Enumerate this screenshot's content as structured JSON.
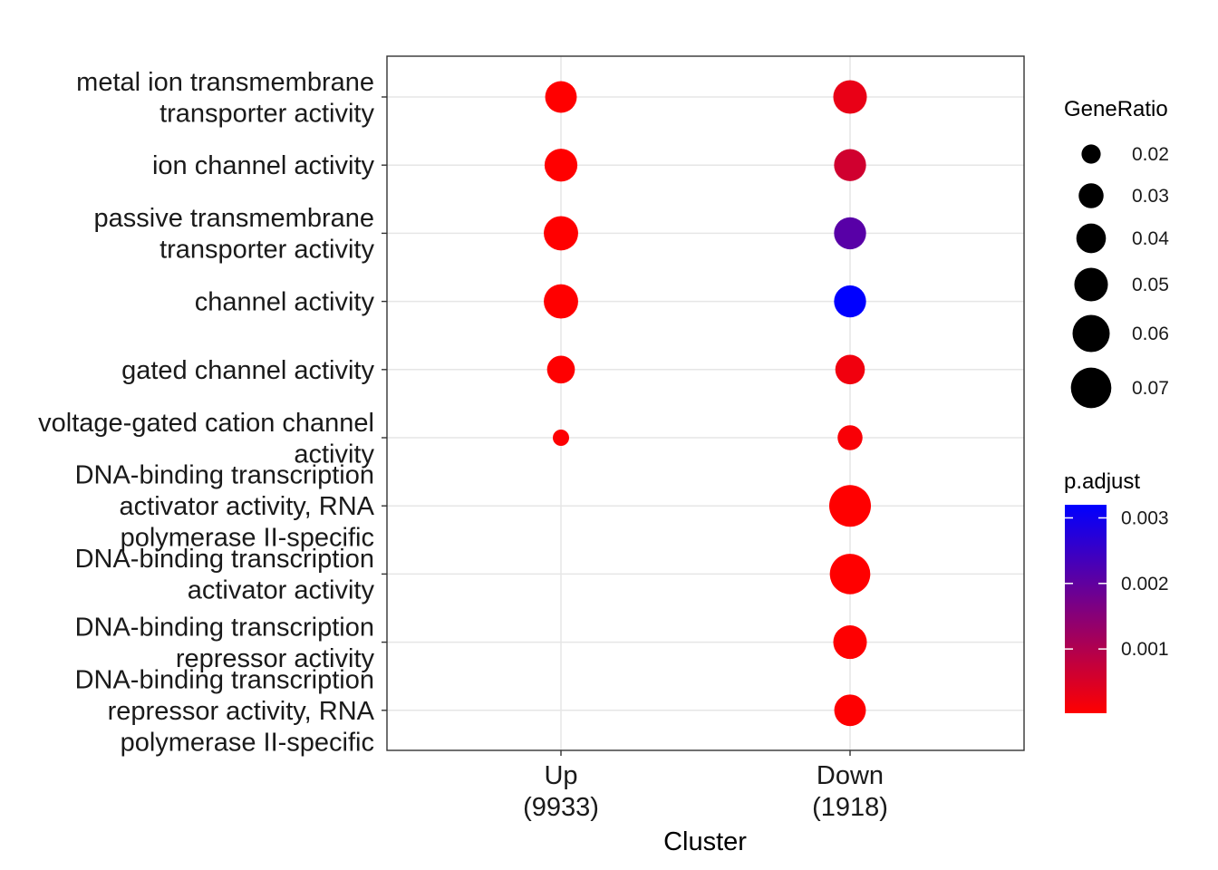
{
  "chart_data": {
    "type": "scatter",
    "xlabel": "Cluster",
    "clusters": [
      {
        "name": "Up",
        "count_label": "(9933)"
      },
      {
        "name": "Down",
        "count_label": "(1918)"
      }
    ],
    "terms": [
      [
        "metal ion transmembrane",
        "transporter activity"
      ],
      [
        "ion channel activity"
      ],
      [
        "passive transmembrane",
        "transporter activity"
      ],
      [
        "channel activity"
      ],
      [
        "gated channel activity"
      ],
      [
        "voltage-gated cation channel",
        "activity"
      ],
      [
        "DNA-binding transcription",
        "activator activity, RNA",
        "polymerase II-specific"
      ],
      [
        "DNA-binding transcription",
        "activator activity"
      ],
      [
        "DNA-binding transcription",
        "repressor activity"
      ],
      [
        "DNA-binding transcription",
        "repressor activity, RNA",
        "polymerase II-specific"
      ]
    ],
    "points": [
      {
        "term": 0,
        "cluster": "Up",
        "gene_ratio": 0.045,
        "p_adjust": 2e-05
      },
      {
        "term": 1,
        "cluster": "Up",
        "gene_ratio": 0.048,
        "p_adjust": 2e-05
      },
      {
        "term": 2,
        "cluster": "Up",
        "gene_ratio": 0.052,
        "p_adjust": 2e-05
      },
      {
        "term": 3,
        "cluster": "Up",
        "gene_ratio": 0.052,
        "p_adjust": 2e-05
      },
      {
        "term": 4,
        "cluster": "Up",
        "gene_ratio": 0.036,
        "p_adjust": 3e-05
      },
      {
        "term": 5,
        "cluster": "Up",
        "gene_ratio": 0.016,
        "p_adjust": 5e-05
      },
      {
        "term": 0,
        "cluster": "Down",
        "gene_ratio": 0.05,
        "p_adjust": 0.0003
      },
      {
        "term": 1,
        "cluster": "Down",
        "gene_ratio": 0.046,
        "p_adjust": 0.0006
      },
      {
        "term": 2,
        "cluster": "Down",
        "gene_ratio": 0.046,
        "p_adjust": 0.0021
      },
      {
        "term": 3,
        "cluster": "Down",
        "gene_ratio": 0.046,
        "p_adjust": 0.0032
      },
      {
        "term": 4,
        "cluster": "Down",
        "gene_ratio": 0.04,
        "p_adjust": 0.0002
      },
      {
        "term": 5,
        "cluster": "Down",
        "gene_ratio": 0.03,
        "p_adjust": 0.0001
      },
      {
        "term": 6,
        "cluster": "Down",
        "gene_ratio": 0.074,
        "p_adjust": 2e-05
      },
      {
        "term": 7,
        "cluster": "Down",
        "gene_ratio": 0.07,
        "p_adjust": 2e-05
      },
      {
        "term": 8,
        "cluster": "Down",
        "gene_ratio": 0.05,
        "p_adjust": 3e-05
      },
      {
        "term": 9,
        "cluster": "Down",
        "gene_ratio": 0.045,
        "p_adjust": 3e-05
      }
    ],
    "size_legend": {
      "title": "GeneRatio",
      "values": [
        0.02,
        0.03,
        0.04,
        0.05,
        0.06,
        0.07
      ],
      "labels": [
        "0.02",
        "0.03",
        "0.04",
        "0.05",
        "0.06",
        "0.07"
      ],
      "range": [
        0.016,
        0.074
      ]
    },
    "color_legend": {
      "title": "p.adjust",
      "values": [
        0.001,
        0.002,
        0.003
      ],
      "labels": [
        "0.001",
        "0.002",
        "0.003"
      ],
      "range": [
        2e-05,
        0.0032
      ],
      "low_color": "#ff0000",
      "high_color": "#0000ff"
    },
    "grid": true
  }
}
